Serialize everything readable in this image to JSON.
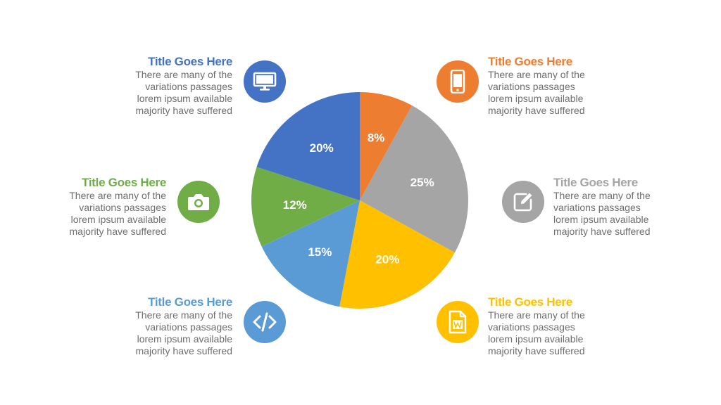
{
  "chart_data": {
    "type": "pie",
    "slices": [
      {
        "label": "8%",
        "value": 8,
        "color": "#ED7D31"
      },
      {
        "label": "25%",
        "value": 25,
        "color": "#A5A5A5"
      },
      {
        "label": "20%",
        "value": 20,
        "color": "#FFC000"
      },
      {
        "label": "15%",
        "value": 15,
        "color": "#5B9BD5"
      },
      {
        "label": "12%",
        "value": 12,
        "color": "#70AD47"
      },
      {
        "label": "20%",
        "value": 20,
        "color": "#4472C4"
      }
    ],
    "start": "12 o'clock",
    "direction": "clockwise"
  },
  "items": [
    {
      "title": "Title Goes Here",
      "text": [
        "There are many of the",
        "variations passages",
        "lorem ipsum available",
        "majority have suffered"
      ],
      "color": "#ED7D31",
      "icon": "smartphone-icon"
    },
    {
      "title": "Title Goes Here",
      "text": [
        "There are many of the",
        "variations passages",
        "lorem ipsum available",
        "majority have suffered"
      ],
      "color": "#A5A5A5",
      "icon": "edit-icon"
    },
    {
      "title": "Title Goes Here",
      "text": [
        "There are many of the",
        "variations passages",
        "lorem ipsum available",
        "majority have suffered"
      ],
      "color": "#FFC000",
      "icon": "word-document-icon"
    },
    {
      "title": "Title Goes Here",
      "text": [
        "There are many of the",
        "variations passages",
        "lorem ipsum available",
        "majority have suffered"
      ],
      "color": "#5B9BD5",
      "icon": "code-icon"
    },
    {
      "title": "Title Goes Here",
      "text": [
        "There are many of the",
        "variations passages",
        "lorem ipsum available",
        "majority have suffered"
      ],
      "color": "#70AD47",
      "icon": "camera-icon"
    },
    {
      "title": "Title Goes Here",
      "text": [
        "There are many of the",
        "variations passages",
        "lorem ipsum available",
        "majority have suffered"
      ],
      "color": "#4472C4",
      "icon": "monitor-icon"
    }
  ]
}
